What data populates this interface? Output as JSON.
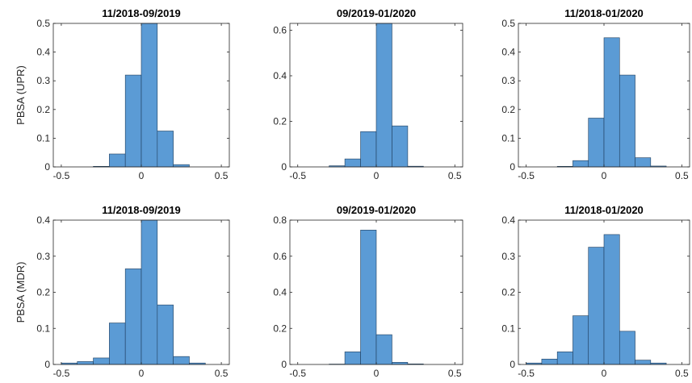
{
  "chart_data": [
    {
      "type": "bar",
      "title": "11/2018-09/2019",
      "ylabel": "PBSA (UPR)",
      "bin_edges": [
        -0.5,
        -0.4,
        -0.3,
        -0.2,
        -0.1,
        0,
        0.1,
        0.2,
        0.3,
        0.4,
        0.5
      ],
      "values": [
        0,
        0,
        0.002,
        0.045,
        0.32,
        0.5,
        0.125,
        0.008,
        0,
        0
      ],
      "xlim": [
        -0.55,
        0.55
      ],
      "ylim": [
        0,
        0.5
      ],
      "xticks": [
        "-0.5",
        "0",
        "0.5"
      ],
      "yticks": [
        "0",
        "0.1",
        "0.2",
        "0.3",
        "0.4",
        "0.5"
      ],
      "bar_color": "#5b9bd5",
      "grid": false
    },
    {
      "type": "bar",
      "title": "09/2019-01/2020",
      "ylabel": "",
      "bin_edges": [
        -0.5,
        -0.4,
        -0.3,
        -0.2,
        -0.1,
        0,
        0.1,
        0.2,
        0.3,
        0.4,
        0.5
      ],
      "values": [
        0,
        0,
        0.005,
        0.035,
        0.155,
        0.63,
        0.18,
        0.003,
        0,
        0
      ],
      "xlim": [
        -0.55,
        0.55
      ],
      "ylim": [
        0,
        0.63
      ],
      "xticks": [
        "-0.5",
        "0",
        "0.5"
      ],
      "yticks": [
        "0",
        "0.2",
        "0.4",
        "0.6"
      ],
      "bar_color": "#5b9bd5",
      "grid": false
    },
    {
      "type": "bar",
      "title": "11/2018-01/2020",
      "ylabel": "",
      "bin_edges": [
        -0.5,
        -0.4,
        -0.3,
        -0.2,
        -0.1,
        0,
        0.1,
        0.2,
        0.3,
        0.4,
        0.5
      ],
      "values": [
        0,
        0,
        0.002,
        0.022,
        0.17,
        0.45,
        0.32,
        0.032,
        0.003,
        0
      ],
      "xlim": [
        -0.55,
        0.55
      ],
      "ylim": [
        0,
        0.5
      ],
      "xticks": [
        "-0.5",
        "0",
        "0.5"
      ],
      "yticks": [
        "0",
        "0.1",
        "0.2",
        "0.3",
        "0.4",
        "0.5"
      ],
      "bar_color": "#5b9bd5",
      "grid": false
    },
    {
      "type": "bar",
      "title": "11/2018-09/2019",
      "ylabel": "PBSA (MDR)",
      "bin_edges": [
        -0.5,
        -0.4,
        -0.3,
        -0.2,
        -0.1,
        0,
        0.1,
        0.2,
        0.3,
        0.4,
        0.5
      ],
      "values": [
        0.004,
        0.008,
        0.018,
        0.115,
        0.265,
        0.4,
        0.165,
        0.022,
        0.004,
        0
      ],
      "xlim": [
        -0.55,
        0.55
      ],
      "ylim": [
        0,
        0.4
      ],
      "xticks": [
        "-0.5",
        "0",
        "0.5"
      ],
      "yticks": [
        "0",
        "0.1",
        "0.2",
        "0.3",
        "0.4"
      ],
      "bar_color": "#5b9bd5",
      "grid": false
    },
    {
      "type": "bar",
      "title": "09/2019-01/2020",
      "ylabel": "",
      "bin_edges": [
        -0.5,
        -0.4,
        -0.3,
        -0.2,
        -0.1,
        0,
        0.1,
        0.2,
        0.3,
        0.4,
        0.5
      ],
      "values": [
        0,
        0,
        0.002,
        0.07,
        0.745,
        0.165,
        0.012,
        0.003,
        0,
        0
      ],
      "xlim": [
        -0.55,
        0.55
      ],
      "ylim": [
        0,
        0.8
      ],
      "xticks": [
        "-0.5",
        "0",
        "0.5"
      ],
      "yticks": [
        "0",
        "0.2",
        "0.4",
        "0.6",
        "0.8"
      ],
      "bar_color": "#5b9bd5",
      "grid": false
    },
    {
      "type": "bar",
      "title": "11/2018-01/2020",
      "ylabel": "",
      "bin_edges": [
        -0.5,
        -0.4,
        -0.3,
        -0.2,
        -0.1,
        0,
        0.1,
        0.2,
        0.3,
        0.4,
        0.5
      ],
      "values": [
        0.004,
        0.015,
        0.035,
        0.135,
        0.325,
        0.36,
        0.092,
        0.012,
        0.004,
        0
      ],
      "xlim": [
        -0.55,
        0.55
      ],
      "ylim": [
        0,
        0.4
      ],
      "xticks": [
        "-0.5",
        "0",
        "0.5"
      ],
      "yticks": [
        "0",
        "0.1",
        "0.2",
        "0.3",
        "0.4"
      ],
      "bar_color": "#5b9bd5",
      "grid": false
    }
  ]
}
